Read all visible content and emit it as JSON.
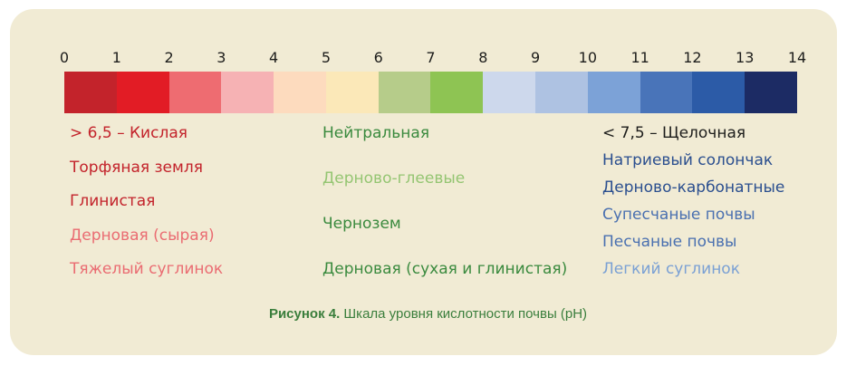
{
  "ph_ticks": [
    "0",
    "1",
    "2",
    "3",
    "4",
    "5",
    "6",
    "7",
    "8",
    "9",
    "10",
    "11",
    "12",
    "13",
    "14"
  ],
  "scale_colors": [
    "#c3232b",
    "#e21c25",
    "#ee6c71",
    "#f6b2b4",
    "#fddbbe",
    "#fbe8b8",
    "#b6cc8a",
    "#8ec453",
    "#cdd8ec",
    "#aec2e2",
    "#7ca2d7",
    "#4974b9",
    "#2c5ba7",
    "#1c2b64"
  ],
  "columns": {
    "acidic": [
      {
        "text": "> 6,5 – Кислая",
        "color": "#c3232b"
      },
      {
        "text": "Торфяная земля",
        "color": "#c3232b"
      },
      {
        "text": "Глинистая",
        "color": "#c3232b"
      },
      {
        "text": "Дерновая (сырая)",
        "color": "#ea6c72"
      },
      {
        "text": "Тяжелый суглинок",
        "color": "#ea6c72"
      }
    ],
    "neutral": [
      {
        "text": "Нейтральная",
        "color": "#3a8a3e"
      },
      {
        "text": "Дерново-глеевые",
        "color": "#94c572"
      },
      {
        "text": "Чернозем",
        "color": "#3a8a3e"
      },
      {
        "text": "Дерновая (сухая и глинистая)",
        "color": "#3a8a3e"
      }
    ],
    "alkaline": [
      {
        "text": "< 7,5 – Щелочная",
        "color": "#1d1d1b"
      },
      {
        "text": "Натриевый солончак",
        "color": "#2b4f8f"
      },
      {
        "text": "Дерново-карбонатные",
        "color": "#2b4f8f"
      },
      {
        "text": "Супесчаные почвы",
        "color": "#4a70b0"
      },
      {
        "text": "Песчаные почвы",
        "color": "#4a70b0"
      },
      {
        "text": "Легкий суглинок",
        "color": "#7aa0d4"
      }
    ]
  },
  "caption": {
    "bold": "Рисунок 4.",
    "text": " Шкала уровня кислотности почвы (pH)"
  }
}
